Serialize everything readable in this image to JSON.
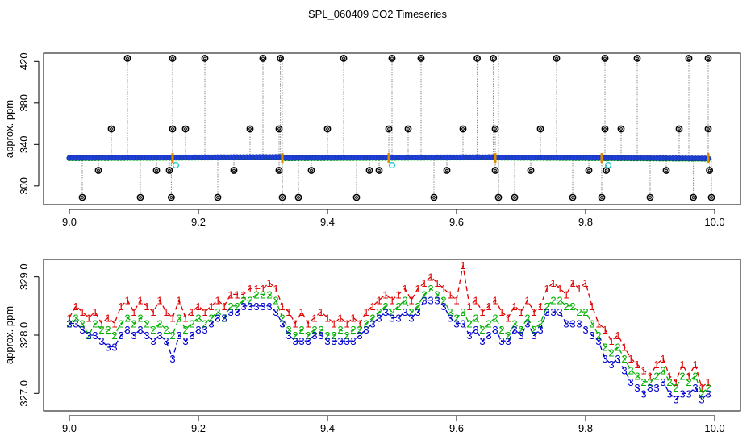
{
  "figure": {
    "title": "SPL_060409  CO2 Timeseries"
  },
  "colors": {
    "black": "#000000",
    "blue": "#1f3fd6",
    "green": "#00b000",
    "red": "#e00000",
    "cyan": "#22cccc",
    "orange": "#e08a00",
    "gray": "#888888"
  },
  "chart_data": [
    {
      "type": "scatter",
      "title": "",
      "xlabel": "",
      "ylabel": "approx. ppm",
      "xlim": [
        8.96,
        10.04
      ],
      "ylim": [
        282,
        428
      ],
      "xticks": [
        9.0,
        9.2,
        9.4,
        9.6,
        9.8,
        10.0
      ],
      "xtick_labels": [
        "9.0",
        "9.2",
        "9.4",
        "9.6",
        "9.8",
        "10.0"
      ],
      "yticks": [
        300,
        340,
        380,
        420
      ],
      "ytick_labels": [
        "300",
        "340",
        "380",
        "420"
      ],
      "baseline": {
        "name": "blue points (continuous)",
        "x_start": 9.0,
        "x_end": 9.99,
        "step": 0.005,
        "segments": [
          {
            "x0": 9.0,
            "x1": 9.33,
            "y0": 327,
            "y1": 328
          },
          {
            "x0": 9.33,
            "x1": 9.66,
            "y0": 327,
            "y1": 327.8
          },
          {
            "x0": 9.66,
            "x1": 9.99,
            "y0": 327.6,
            "y1": 326.5
          }
        ]
      },
      "spikes": {
        "name": "outlier spikes (black circles)",
        "x": [
          9.02,
          9.045,
          9.065,
          9.09,
          9.11,
          9.135,
          9.155,
          9.158,
          9.16,
          9.16,
          9.18,
          9.21,
          9.23,
          9.255,
          9.28,
          9.3,
          9.325,
          9.325,
          9.327,
          9.33,
          9.355,
          9.375,
          9.4,
          9.425,
          9.445,
          9.465,
          9.48,
          9.495,
          9.5,
          9.525,
          9.545,
          9.565,
          9.585,
          9.61,
          9.632,
          9.657,
          9.66,
          9.66,
          9.665,
          9.69,
          9.715,
          9.73,
          9.755,
          9.78,
          9.805,
          9.825,
          9.83,
          9.83,
          9.832,
          9.855,
          9.88,
          9.9,
          9.925,
          9.945,
          9.96,
          9.967,
          9.99,
          9.99,
          9.992,
          9.995
        ],
        "y": [
          289,
          315,
          355,
          423,
          289,
          315,
          315,
          289,
          355,
          423,
          355,
          423,
          289,
          315,
          355,
          423,
          355,
          315,
          423,
          289,
          289,
          315,
          355,
          423,
          289,
          315,
          315,
          355,
          423,
          355,
          423,
          289,
          315,
          355,
          423,
          423,
          355,
          315,
          289,
          289,
          315,
          355,
          423,
          289,
          315,
          289,
          355,
          423,
          315,
          355,
          423,
          289,
          315,
          355,
          423,
          289,
          423,
          355,
          315,
          289
        ]
      },
      "cyan_points": {
        "x": [
          9.165,
          9.5,
          9.835
        ],
        "y": [
          320,
          320,
          320
        ]
      },
      "orange_markers": {
        "x": [
          9.16,
          9.33,
          9.495,
          9.66,
          9.825,
          9.99
        ],
        "y": [
          327,
          327,
          327,
          327,
          327,
          327
        ]
      },
      "vertical_lines": {
        "x": [
          9.33,
          9.665
        ]
      }
    },
    {
      "type": "line",
      "title": "",
      "xlabel": "",
      "ylabel": "approx. ppm",
      "xlim": [
        8.96,
        10.04
      ],
      "ylim": [
        326.7,
        329.3
      ],
      "xticks": [
        9.0,
        9.2,
        9.4,
        9.6,
        9.8,
        10.0
      ],
      "xtick_labels": [
        "9.0",
        "9.2",
        "9.4",
        "9.6",
        "9.8",
        "10.0"
      ],
      "yticks": [
        327.0,
        328.0,
        329.0
      ],
      "ytick_labels": [
        "327.0",
        "328.0",
        "329.0"
      ],
      "marker_labels": [
        "1",
        "2",
        "3"
      ],
      "x": [
        9.0,
        9.01,
        9.02,
        9.03,
        9.04,
        9.05,
        9.06,
        9.07,
        9.08,
        9.09,
        9.1,
        9.11,
        9.12,
        9.13,
        9.14,
        9.15,
        9.16,
        9.17,
        9.18,
        9.19,
        9.2,
        9.21,
        9.22,
        9.23,
        9.24,
        9.25,
        9.26,
        9.27,
        9.28,
        9.29,
        9.3,
        9.31,
        9.32,
        9.33,
        9.34,
        9.35,
        9.36,
        9.37,
        9.38,
        9.39,
        9.4,
        9.41,
        9.42,
        9.43,
        9.44,
        9.45,
        9.46,
        9.47,
        9.48,
        9.49,
        9.5,
        9.51,
        9.52,
        9.53,
        9.54,
        9.55,
        9.56,
        9.57,
        9.58,
        9.59,
        9.6,
        9.61,
        9.62,
        9.63,
        9.64,
        9.65,
        9.66,
        9.67,
        9.68,
        9.69,
        9.7,
        9.71,
        9.72,
        9.73,
        9.74,
        9.75,
        9.76,
        9.77,
        9.78,
        9.79,
        9.8,
        9.81,
        9.82,
        9.83,
        9.84,
        9.85,
        9.86,
        9.87,
        9.88,
        9.89,
        9.9,
        9.91,
        9.92,
        9.93,
        9.94,
        9.95,
        9.96,
        9.97,
        9.98,
        9.99
      ],
      "series": [
        {
          "name": "1",
          "color": "#e00000",
          "values": [
            328.3,
            328.5,
            328.4,
            328.3,
            328.4,
            328.2,
            328.3,
            328.2,
            328.5,
            328.6,
            328.4,
            328.6,
            328.5,
            328.4,
            328.6,
            328.4,
            328.3,
            328.6,
            328.3,
            328.4,
            328.5,
            328.4,
            328.5,
            328.6,
            328.5,
            328.7,
            328.7,
            328.7,
            328.8,
            328.8,
            328.8,
            328.9,
            328.8,
            328.5,
            328.4,
            328.2,
            328.4,
            328.2,
            328.3,
            328.4,
            328.3,
            328.2,
            328.3,
            328.2,
            328.3,
            328.2,
            328.4,
            328.5,
            328.6,
            328.7,
            328.6,
            328.7,
            328.8,
            328.6,
            328.8,
            328.9,
            329.0,
            328.9,
            328.8,
            328.7,
            328.6,
            329.2,
            328.5,
            328.6,
            328.4,
            328.5,
            328.6,
            328.4,
            328.3,
            328.5,
            328.4,
            328.6,
            328.4,
            328.5,
            328.8,
            328.9,
            328.8,
            328.7,
            328.9,
            328.8,
            328.9,
            328.5,
            328.2,
            328.1,
            327.9,
            328.0,
            327.8,
            327.6,
            327.5,
            327.4,
            327.3,
            327.5,
            327.6,
            327.3,
            327.2,
            327.5,
            327.3,
            327.5,
            327.1,
            327.2
          ]
        },
        {
          "name": "2",
          "color": "#00b000",
          "values": [
            328.2,
            328.3,
            328.2,
            328.0,
            328.2,
            328.1,
            328.1,
            328.0,
            328.2,
            328.3,
            328.2,
            328.3,
            328.2,
            328.1,
            328.2,
            328.1,
            328.0,
            328.3,
            328.1,
            328.2,
            328.3,
            328.2,
            328.3,
            328.4,
            328.3,
            328.5,
            328.5,
            328.6,
            328.6,
            328.7,
            328.7,
            328.7,
            328.6,
            328.3,
            328.1,
            328.0,
            328.1,
            328.0,
            328.1,
            328.1,
            328.0,
            328.0,
            328.1,
            328.0,
            328.1,
            328.1,
            328.2,
            328.3,
            328.4,
            328.5,
            328.4,
            328.5,
            328.6,
            328.4,
            328.5,
            328.7,
            328.8,
            328.7,
            328.6,
            328.4,
            328.3,
            328.4,
            328.2,
            328.3,
            328.1,
            328.2,
            328.3,
            328.1,
            328.0,
            328.2,
            328.1,
            328.3,
            328.1,
            328.2,
            328.5,
            328.6,
            328.6,
            328.5,
            328.5,
            328.4,
            328.4,
            328.2,
            328.0,
            327.8,
            327.7,
            327.8,
            327.6,
            327.4,
            327.3,
            327.2,
            327.2,
            327.3,
            327.4,
            327.2,
            327.1,
            327.3,
            327.2,
            327.3,
            327.0,
            327.1
          ]
        },
        {
          "name": "3",
          "color": "#0000d0",
          "values": [
            328.2,
            328.2,
            328.1,
            328.0,
            328.0,
            327.9,
            327.8,
            327.8,
            328.0,
            328.1,
            328.0,
            328.1,
            328.0,
            327.9,
            328.0,
            327.9,
            327.6,
            328.0,
            327.9,
            328.0,
            328.1,
            328.1,
            328.2,
            328.3,
            328.3,
            328.4,
            328.4,
            328.5,
            328.5,
            328.5,
            328.5,
            328.5,
            328.4,
            328.2,
            328.0,
            327.9,
            327.9,
            327.9,
            328.0,
            328.0,
            327.9,
            327.9,
            327.9,
            327.9,
            327.9,
            328.0,
            328.1,
            328.2,
            328.3,
            328.4,
            328.3,
            328.3,
            328.4,
            328.3,
            328.4,
            328.6,
            328.6,
            328.6,
            328.5,
            328.3,
            328.2,
            328.2,
            328.0,
            328.1,
            327.9,
            328.0,
            328.1,
            327.9,
            327.9,
            328.1,
            328.0,
            328.2,
            328.0,
            328.1,
            328.4,
            328.4,
            328.4,
            328.2,
            328.2,
            328.2,
            328.1,
            328.0,
            327.9,
            327.6,
            327.5,
            327.6,
            327.4,
            327.2,
            327.1,
            327.0,
            327.1,
            327.1,
            327.2,
            327.0,
            326.9,
            327.0,
            327.0,
            327.1,
            326.9,
            327.0
          ]
        }
      ]
    }
  ]
}
